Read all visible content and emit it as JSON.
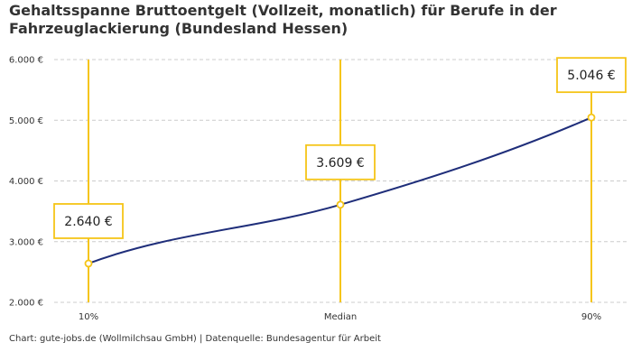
{
  "chart": {
    "title": "Gehaltsspanne Bruttoentgelt (Vollzeit, monatlich) für Berufe in der Fahrzeuglackierung (Bundesland Hessen)",
    "source": "Chart: gute-jobs.de (Wollmilchsau GmbH) | Datenquelle: Bundesagentur für Arbeit"
  },
  "colors": {
    "line": "#1f2e7a",
    "highlight": "#f5c518",
    "grid": "#cccccc"
  },
  "chart_data": {
    "type": "line",
    "categories": [
      "10%",
      "Median",
      "90%"
    ],
    "values": [
      2640,
      3609,
      5046
    ],
    "value_labels": [
      "2.640 €",
      "3.609 €",
      "5.046 €"
    ],
    "title": "Gehaltsspanne Bruttoentgelt (Vollzeit, monatlich) für Berufe in der Fahrzeuglackierung (Bundesland Hessen)",
    "xlabel": "",
    "ylabel": "",
    "ylim": [
      2000,
      6000
    ],
    "y_ticks": [
      2000,
      3000,
      4000,
      5000,
      6000
    ],
    "y_tick_labels": [
      "2.000 €",
      "3.000 €",
      "4.000 €",
      "5.000 €",
      "6.000 €"
    ],
    "grid": true,
    "legend": "none"
  }
}
